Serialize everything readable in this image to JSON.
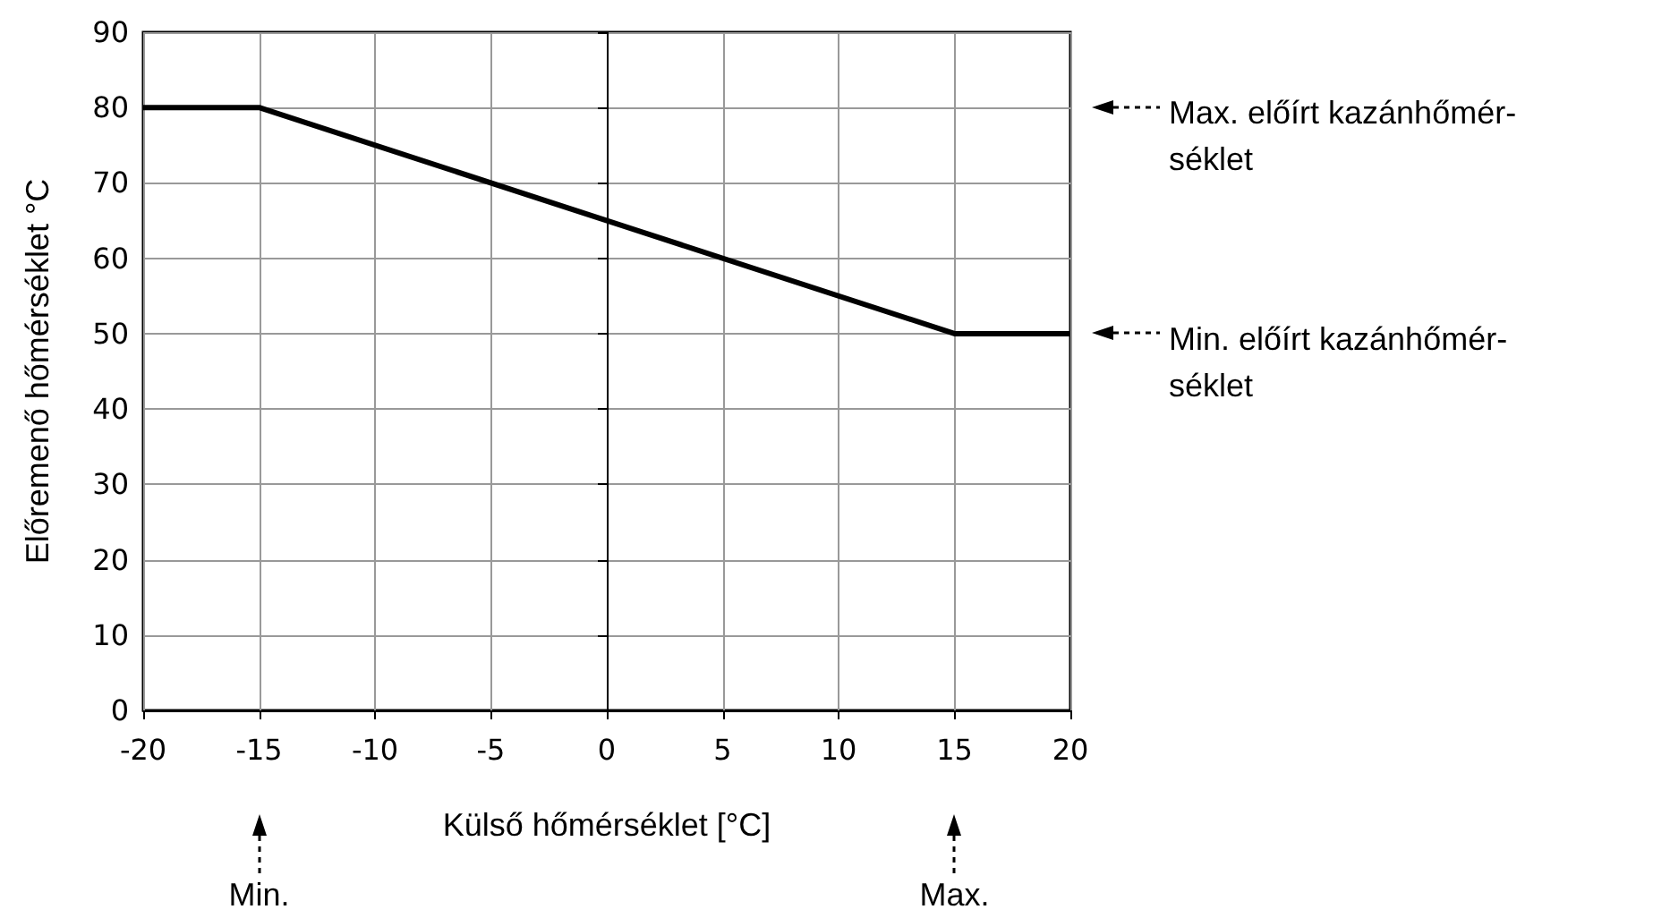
{
  "chart_data": {
    "type": "line",
    "xlabel": "Külső hőmérséklet [°C]",
    "ylabel": "Előremenő hőmérséklet °C",
    "x": [
      -20,
      -15,
      15,
      20
    ],
    "series": [
      {
        "color": "#000000",
        "values": [
          80,
          80,
          50,
          50
        ]
      }
    ],
    "xlim": [
      -20,
      20
    ],
    "xticks": [
      -20,
      -15,
      -10,
      -5,
      0,
      5,
      10,
      15,
      20
    ],
    "ylim": [
      0,
      90
    ],
    "yticks": [
      0,
      10,
      20,
      30,
      40,
      50,
      60,
      70,
      80,
      90
    ],
    "grid": true,
    "marker": "none",
    "line_style": "solid",
    "annotations": [
      "Max. előírt kazánhőmér-\nséklet",
      "Min. előírt kazánhőmér-\nséklet",
      "Min.",
      "Max."
    ]
  }
}
